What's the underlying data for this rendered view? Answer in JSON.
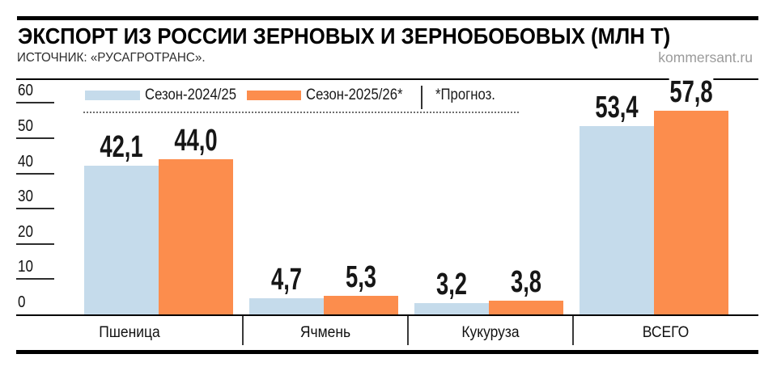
{
  "header": {
    "title": "ЭКСПОРТ ИЗ РОССИИ ЗЕРНОВЫХ И ЗЕРНОБОБОВЫХ (МЛН Т)",
    "source": "ИСТОЧНИК: «РУСАГРОТРАНС».",
    "site": "kommersant.ru"
  },
  "legend": {
    "series1_label": "Сезон-2024/25",
    "series2_label": "Сезон-2025/26*",
    "note": "*Прогноз."
  },
  "colors": {
    "season_2024_25": "#c5dbeb",
    "season_2025_26": "#fc8d4d",
    "rule_black": "#000000",
    "site_gray": "#9b9b9b"
  },
  "chart_data": {
    "type": "bar",
    "title": "ЭКСПОРТ ИЗ РОССИИ ЗЕРНОВЫХ И ЗЕРНОБОБОВЫХ (МЛН Т)",
    "unit": "млн т",
    "categories": [
      "Пшеница",
      "Ячмень",
      "Кукуруза",
      "ВСЕГО"
    ],
    "series": [
      {
        "name": "Сезон-2024/25",
        "color": "#c5dbeb",
        "values": [
          42.1,
          4.7,
          3.2,
          53.4
        ]
      },
      {
        "name": "Сезон-2025/26*",
        "color": "#fc8d4d",
        "values": [
          44.0,
          5.3,
          3.8,
          57.8
        ]
      }
    ],
    "value_labels": [
      [
        "42,1",
        "4,7",
        "3,2",
        "53,4"
      ],
      [
        "44,0",
        "5,3",
        "3,8",
        "57,8"
      ]
    ],
    "note": "*Прогноз.",
    "decimal_separator": ",",
    "ylim": [
      0,
      60
    ],
    "yticks": [
      0,
      10,
      20,
      30,
      40,
      50,
      60
    ],
    "grid": false,
    "legend_position": "top-left"
  }
}
